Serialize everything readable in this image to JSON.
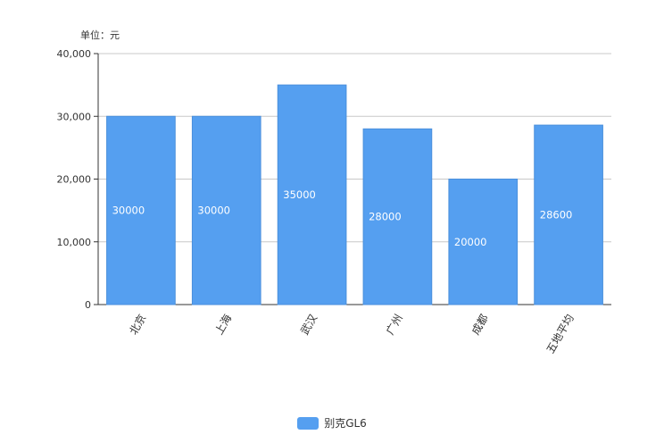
{
  "unit_label": "单位：元",
  "legend": {
    "label": "别克GL6",
    "color": "#559ff0"
  },
  "chart_data": {
    "type": "bar",
    "categories": [
      "北京",
      "上海",
      "武汉",
      "广州",
      "成都",
      "五地平均"
    ],
    "series": [
      {
        "name": "别克GL6",
        "values": [
          30000,
          30000,
          35000,
          28000,
          20000,
          28600
        ],
        "color": "#559ff0"
      }
    ],
    "ylim": [
      0,
      40000
    ],
    "yticks": [
      "0",
      "10,000",
      "20,000",
      "30,000",
      "40,000"
    ],
    "grid": true,
    "legend_position": "bottom",
    "data_labels": [
      "30000",
      "30000",
      "35000",
      "28000",
      "20000",
      "28600"
    ]
  }
}
